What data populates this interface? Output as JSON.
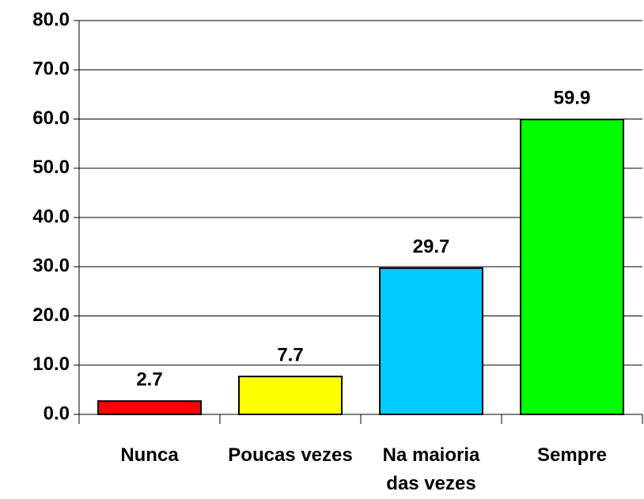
{
  "chart_data": {
    "type": "bar",
    "categories": [
      "Nunca",
      "Poucas vezes",
      "Na maioria das vezes",
      "Sempre"
    ],
    "values": [
      2.7,
      7.7,
      29.7,
      59.9
    ],
    "colors": [
      "#ff0000",
      "#ffff00",
      "#00ccff",
      "#00ff00"
    ],
    "ylim": [
      0,
      80
    ],
    "yticks": [
      {
        "value": 0,
        "label": "0.0"
      },
      {
        "value": 10,
        "label": "10.0"
      },
      {
        "value": 20,
        "label": "20.0"
      },
      {
        "value": 30,
        "label": "30.0"
      },
      {
        "value": 40,
        "label": "40.0"
      },
      {
        "value": 50,
        "label": "50.0"
      },
      {
        "value": 60,
        "label": "60.0"
      },
      {
        "value": 70,
        "label": "70.0"
      },
      {
        "value": 80,
        "label": "80.0"
      }
    ],
    "grid": true
  }
}
